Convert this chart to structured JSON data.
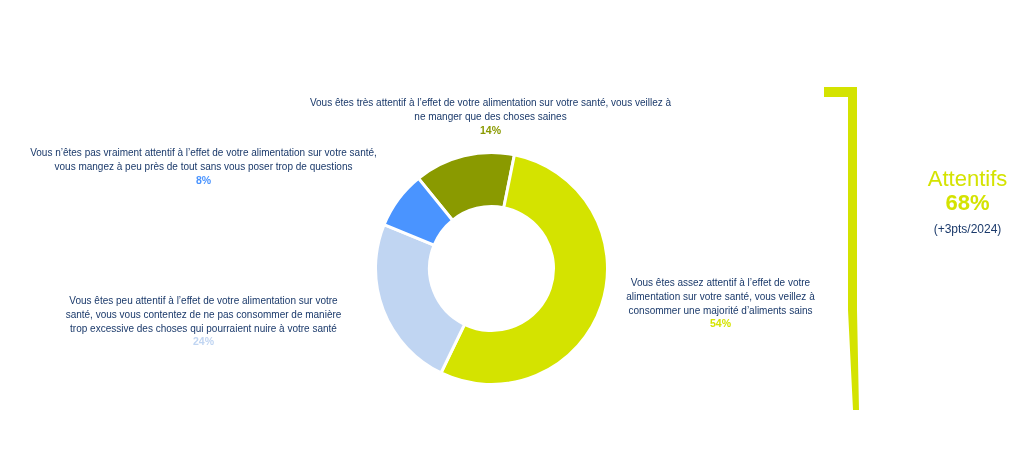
{
  "chart_data": {
    "type": "donut",
    "categories": [
      "Vous êtes très attentif à l’effet de votre alimentation sur votre santé, vous veillez à\nne manger que des choses saines",
      "Vous êtes assez attentif à l’effet de votre\nalimentation sur votre santé, vous veillez à\nconsommer une majorité d’aliments sains",
      "Vous êtes peu attentif à l’effet de votre alimentation sur votre\nsanté, vous vous contentez de ne pas consommer de manière\ntrop excessive des choses qui pourraient nuire à votre santé",
      "Vous n’êtes pas vraiment attentif à l’effet de votre alimentation sur votre santé,\nvous mangez à peu près de tout sans vous poser trop de questions"
    ],
    "values": [
      14,
      54,
      24,
      8
    ],
    "value_labels": [
      "14%",
      "54%",
      "24%",
      "8%"
    ],
    "colors": [
      "#8a9a00",
      "#d4e300",
      "#c0d5f2",
      "#4a94ff"
    ],
    "annotations": [
      "Attentifs",
      "68%",
      "(+3pts/2024)"
    ]
  }
}
